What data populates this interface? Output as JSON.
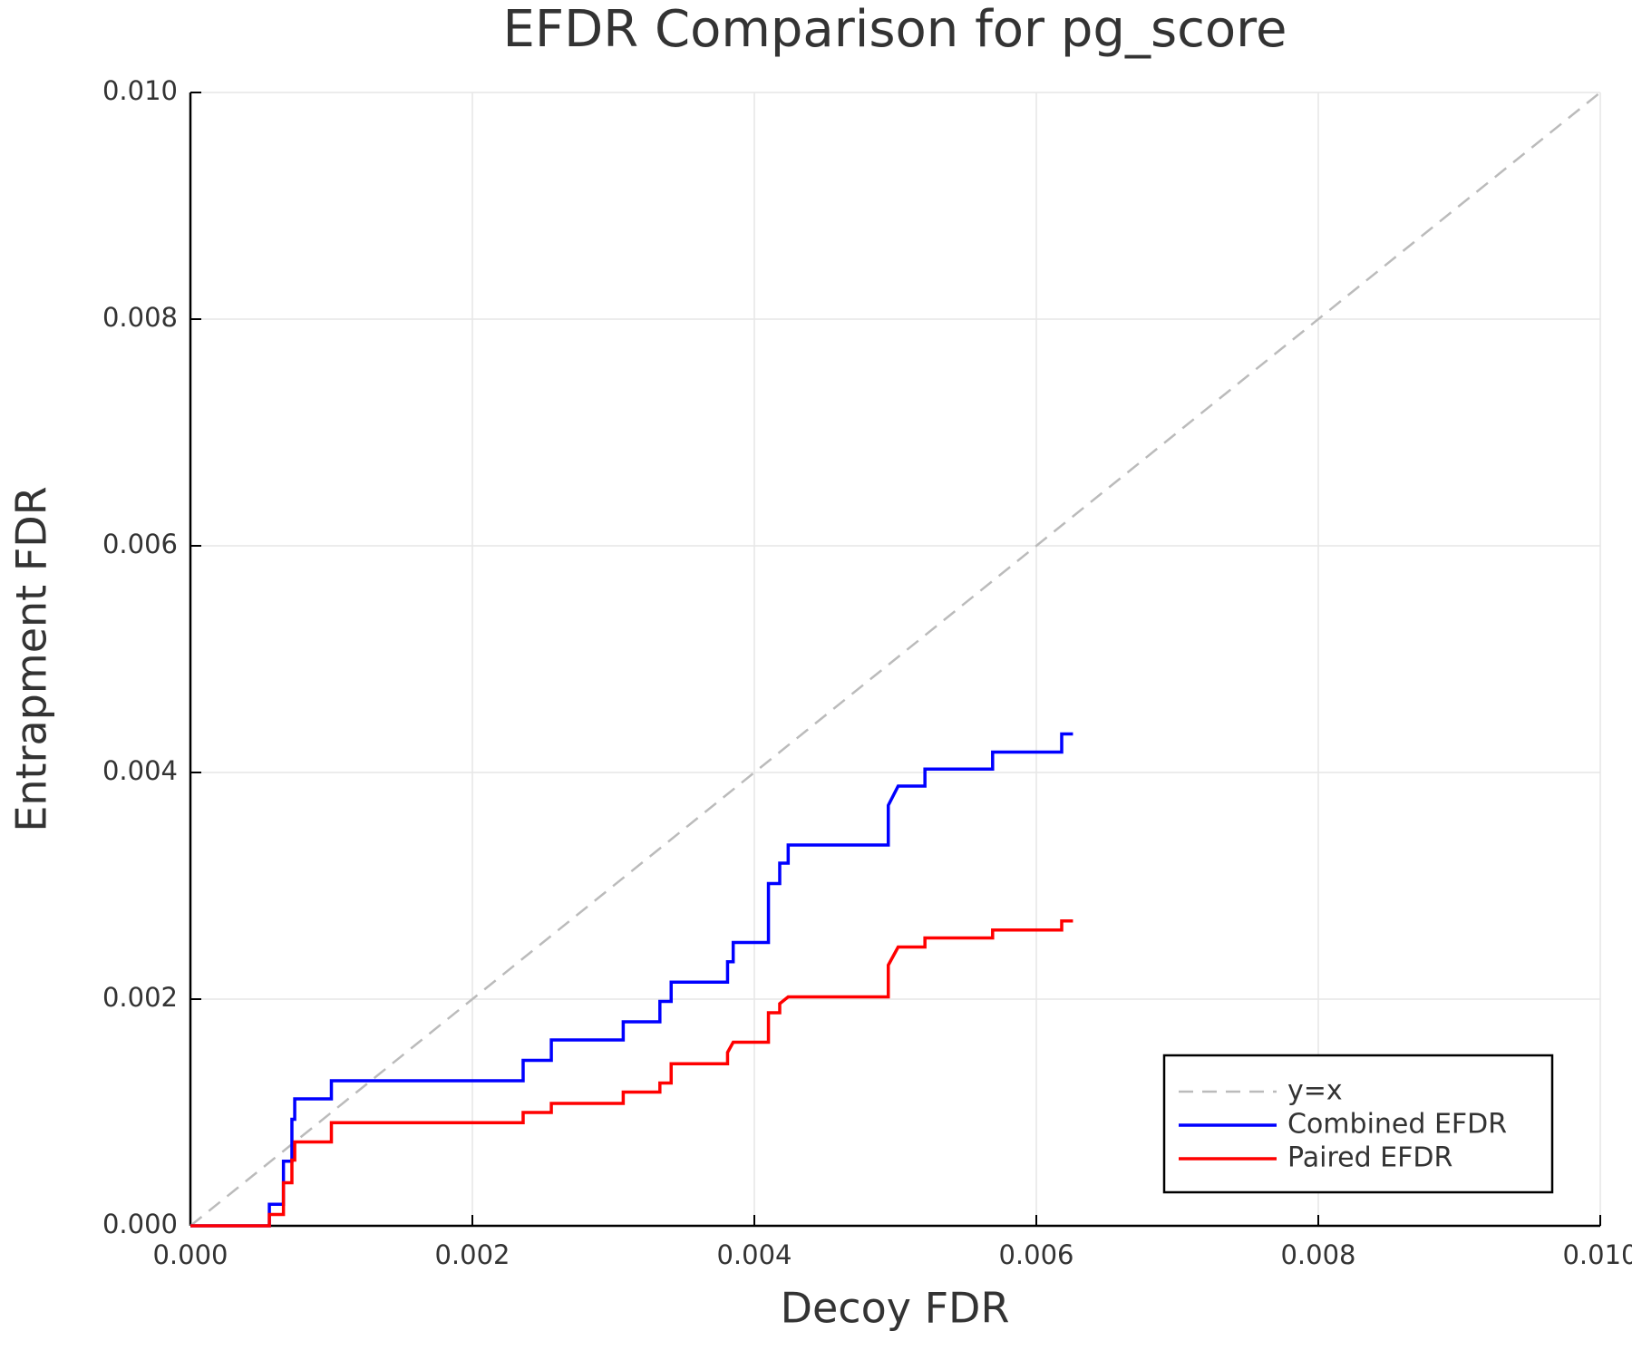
{
  "chart_data": {
    "type": "line",
    "title": "EFDR Comparison for pg_score",
    "x_label": "Decoy FDR",
    "y_label": "Entrapment FDR",
    "xlim": [
      0,
      0.01
    ],
    "ylim": [
      0,
      0.01
    ],
    "xticks": [
      {
        "value": 0,
        "label": "0.000"
      },
      0.002,
      0.004,
      0.006,
      0.008,
      {
        "value": 0.01,
        "label": "0.010"
      }
    ],
    "yticks": [
      {
        "value": 0,
        "label": "0.000"
      },
      0.002,
      0.004,
      0.006,
      0.008,
      {
        "value": 0.01,
        "label": "0.010"
      }
    ],
    "grid": true,
    "legend": "bottom right",
    "series": [
      {
        "name": "y=x",
        "color": "#bbbbbb",
        "dashed": true,
        "x": [
          0,
          0.01
        ],
        "y": [
          0,
          0.01
        ]
      },
      {
        "name": "Combined EFDR",
        "color": "#0000ff",
        "x": [
          0,
          0.00056,
          0.00056,
          0.00066,
          0.00066,
          0.00072,
          0.00072,
          0.00074,
          0.00074,
          0.001,
          0.001,
          0.00236,
          0.00236,
          0.00256,
          0.00256,
          0.00307,
          0.00307,
          0.00333,
          0.00333,
          0.00341,
          0.00341,
          0.00381,
          0.00381,
          0.00385,
          0.00385,
          0.0041,
          0.0041,
          0.00418,
          0.00418,
          0.00424,
          0.00424,
          0.00495,
          0.00495,
          0.00502,
          0.00521,
          0.00521,
          0.00569,
          0.00569,
          0.00618,
          0.00618,
          0.00626
        ],
        "y": [
          0,
          0,
          0.00019,
          0.00019,
          0.00057,
          0.00057,
          0.00094,
          0.00094,
          0.00112,
          0.00112,
          0.00128,
          0.00128,
          0.00146,
          0.00146,
          0.00164,
          0.00164,
          0.0018,
          0.0018,
          0.00198,
          0.00198,
          0.00215,
          0.00215,
          0.00233,
          0.00233,
          0.0025,
          0.0025,
          0.00302,
          0.00302,
          0.0032,
          0.0032,
          0.00336,
          0.00336,
          0.00371,
          0.00388,
          0.00388,
          0.00403,
          0.00403,
          0.00418,
          0.00418,
          0.00434,
          0.00434
        ]
      },
      {
        "name": "Paired EFDR",
        "color": "#ff0000",
        "x": [
          0,
          0.00056,
          0.00056,
          0.00066,
          0.00066,
          0.00072,
          0.00072,
          0.00074,
          0.00074,
          0.001,
          0.001,
          0.00236,
          0.00236,
          0.00256,
          0.00256,
          0.00307,
          0.00307,
          0.00333,
          0.00333,
          0.00341,
          0.00341,
          0.00381,
          0.00381,
          0.00385,
          0.0041,
          0.0041,
          0.00418,
          0.00418,
          0.00424,
          0.00495,
          0.00495,
          0.00502,
          0.00521,
          0.00521,
          0.00569,
          0.00569,
          0.00618,
          0.00618,
          0.00626
        ],
        "y": [
          0,
          0,
          0.0001,
          0.0001,
          0.00038,
          0.00038,
          0.00058,
          0.00058,
          0.00074,
          0.00074,
          0.00091,
          0.00091,
          0.001,
          0.001,
          0.00108,
          0.00108,
          0.00118,
          0.00118,
          0.00126,
          0.00126,
          0.00143,
          0.00143,
          0.00153,
          0.00162,
          0.00162,
          0.00188,
          0.00188,
          0.00196,
          0.00202,
          0.00202,
          0.0023,
          0.00246,
          0.00246,
          0.00254,
          0.00254,
          0.00261,
          0.00261,
          0.00269,
          0.00269
        ]
      }
    ]
  }
}
